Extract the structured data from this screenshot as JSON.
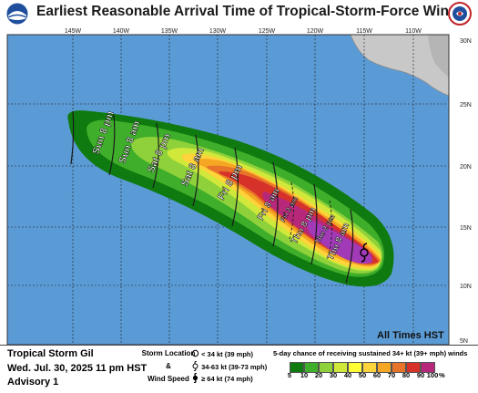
{
  "title": "Earliest Reasonable Arrival Time of Tropical-Storm-Force Winds",
  "logos": {
    "left": "noaa-logo",
    "right": "national-weather-service-logo"
  },
  "map": {
    "longitude_labels": [
      "145W",
      "140W",
      "135W",
      "130W",
      "125W",
      "120W",
      "115W",
      "110W"
    ],
    "latitude_labels": [
      "30N",
      "25N",
      "20N",
      "15N",
      "10N",
      "5N"
    ],
    "arrival_time_labels": [
      "Sun 8 pm",
      "Sun 8 am",
      "Sat 8 pm",
      "Sat 8 am",
      "Fri 8 pm",
      "Fri 8 am",
      "Fri 2 am",
      "Thu 8 pm",
      "Thu 2 pm",
      "Thu 8 am"
    ],
    "storm_symbol": "tropical-storm-icon",
    "timezone_note": "All Times HST"
  },
  "info": {
    "storm_name": "Tropical Storm Gil",
    "issued": "Wed. Jul. 30, 2025  11 pm HST",
    "advisory": "Advisory 1"
  },
  "legend": {
    "storm_location_label": "Storm Location",
    "and_label": "&",
    "wind_speed_label": "Wind Speed",
    "symbols": [
      {
        "icon": "low-circle-icon",
        "text": "< 34 kt (39 mph)"
      },
      {
        "icon": "tropical-storm-icon",
        "text": "34-63 kt (39-73 mph)"
      },
      {
        "icon": "hurricane-icon",
        "text": "≥ 64 kt (74 mph)"
      }
    ],
    "chance_title": "5-day chance of receiving sustained 34+ kt (39+ mph) winds",
    "scale_values": [
      "5",
      "10",
      "20",
      "30",
      "40",
      "50",
      "60",
      "70",
      "80",
      "90",
      "100"
    ],
    "scale_colors": [
      "#0f7a0f",
      "#3fae2a",
      "#8fd13a",
      "#cfe83a",
      "#ffff33",
      "#ffd33a",
      "#f5a623",
      "#e8742a",
      "#d6322a",
      "#b8287a",
      "#a23ab8"
    ],
    "percent_sign": "%"
  },
  "colors": {
    "ocean": "#5b9bd5",
    "land": "#c8c8c8",
    "grid": "#1a1a1a"
  }
}
